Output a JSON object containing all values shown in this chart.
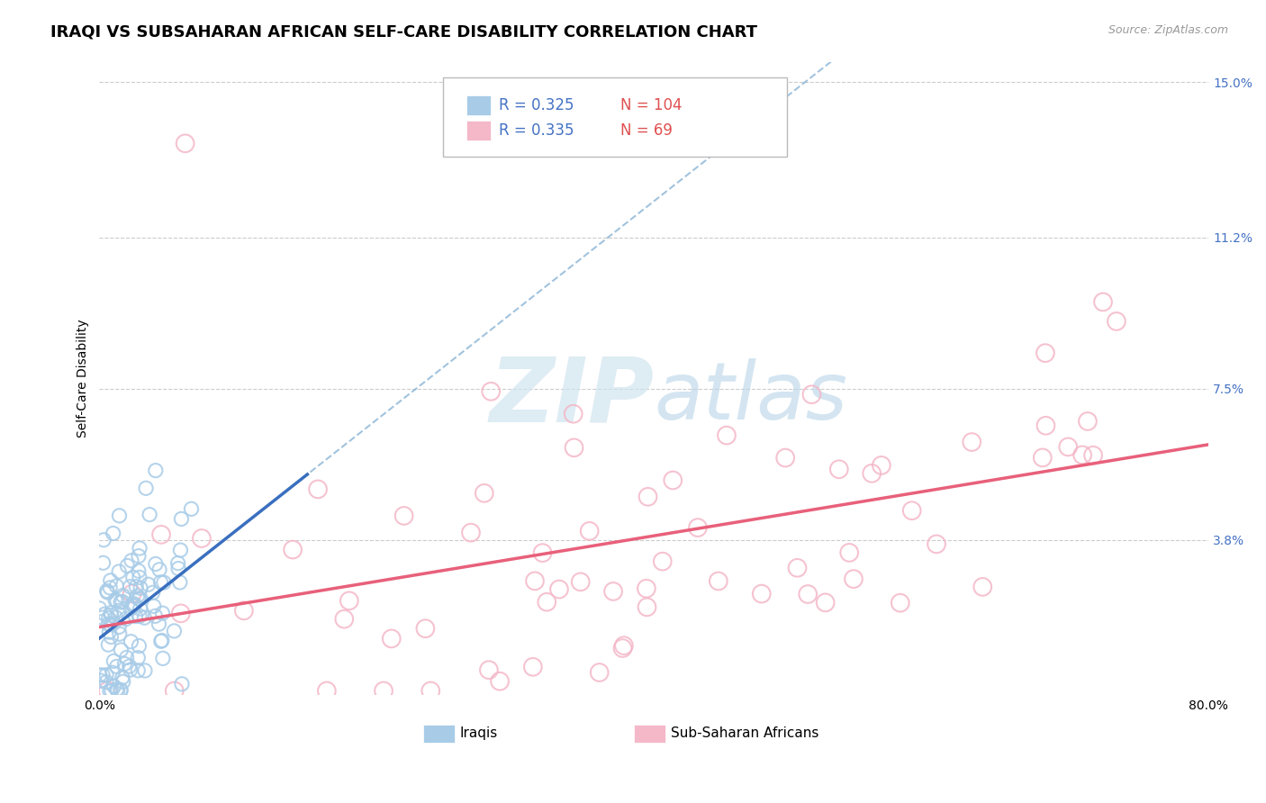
{
  "title": "IRAQI VS SUBSAHARAN AFRICAN SELF-CARE DISABILITY CORRELATION CHART",
  "source": "Source: ZipAtlas.com",
  "ylabel": "Self-Care Disability",
  "xlim": [
    0,
    0.8
  ],
  "ylim": [
    0,
    0.155
  ],
  "yticks": [
    0.038,
    0.075,
    0.112,
    0.15
  ],
  "ytick_labels": [
    "3.8%",
    "7.5%",
    "11.2%",
    "15.0%"
  ],
  "iraqi_R": 0.325,
  "iraqi_N": 104,
  "subsaharan_R": 0.335,
  "subsaharan_N": 69,
  "iraqi_color": "#a8cce8",
  "subsaharan_color": "#f4b8c8",
  "iraqi_line_color": "#3a6fbf",
  "iraqi_dash_color": "#7aaad0",
  "subsaharan_line_color": "#e8607a",
  "watermark_color": "#d0e4f0",
  "background_color": "#ffffff",
  "grid_color": "#cccccc",
  "legend_label_iraqi": "Iraqis",
  "legend_label_subsaharan": "Sub-Saharan Africans",
  "title_fontsize": 13,
  "axis_label_fontsize": 10,
  "tick_label_fontsize": 10,
  "ytick_color": "#4472c4",
  "dot_size_iraqi": 120,
  "dot_size_subsaharan": 200,
  "legend_R_color": "#4472c4",
  "legend_N_color": "#e05050"
}
